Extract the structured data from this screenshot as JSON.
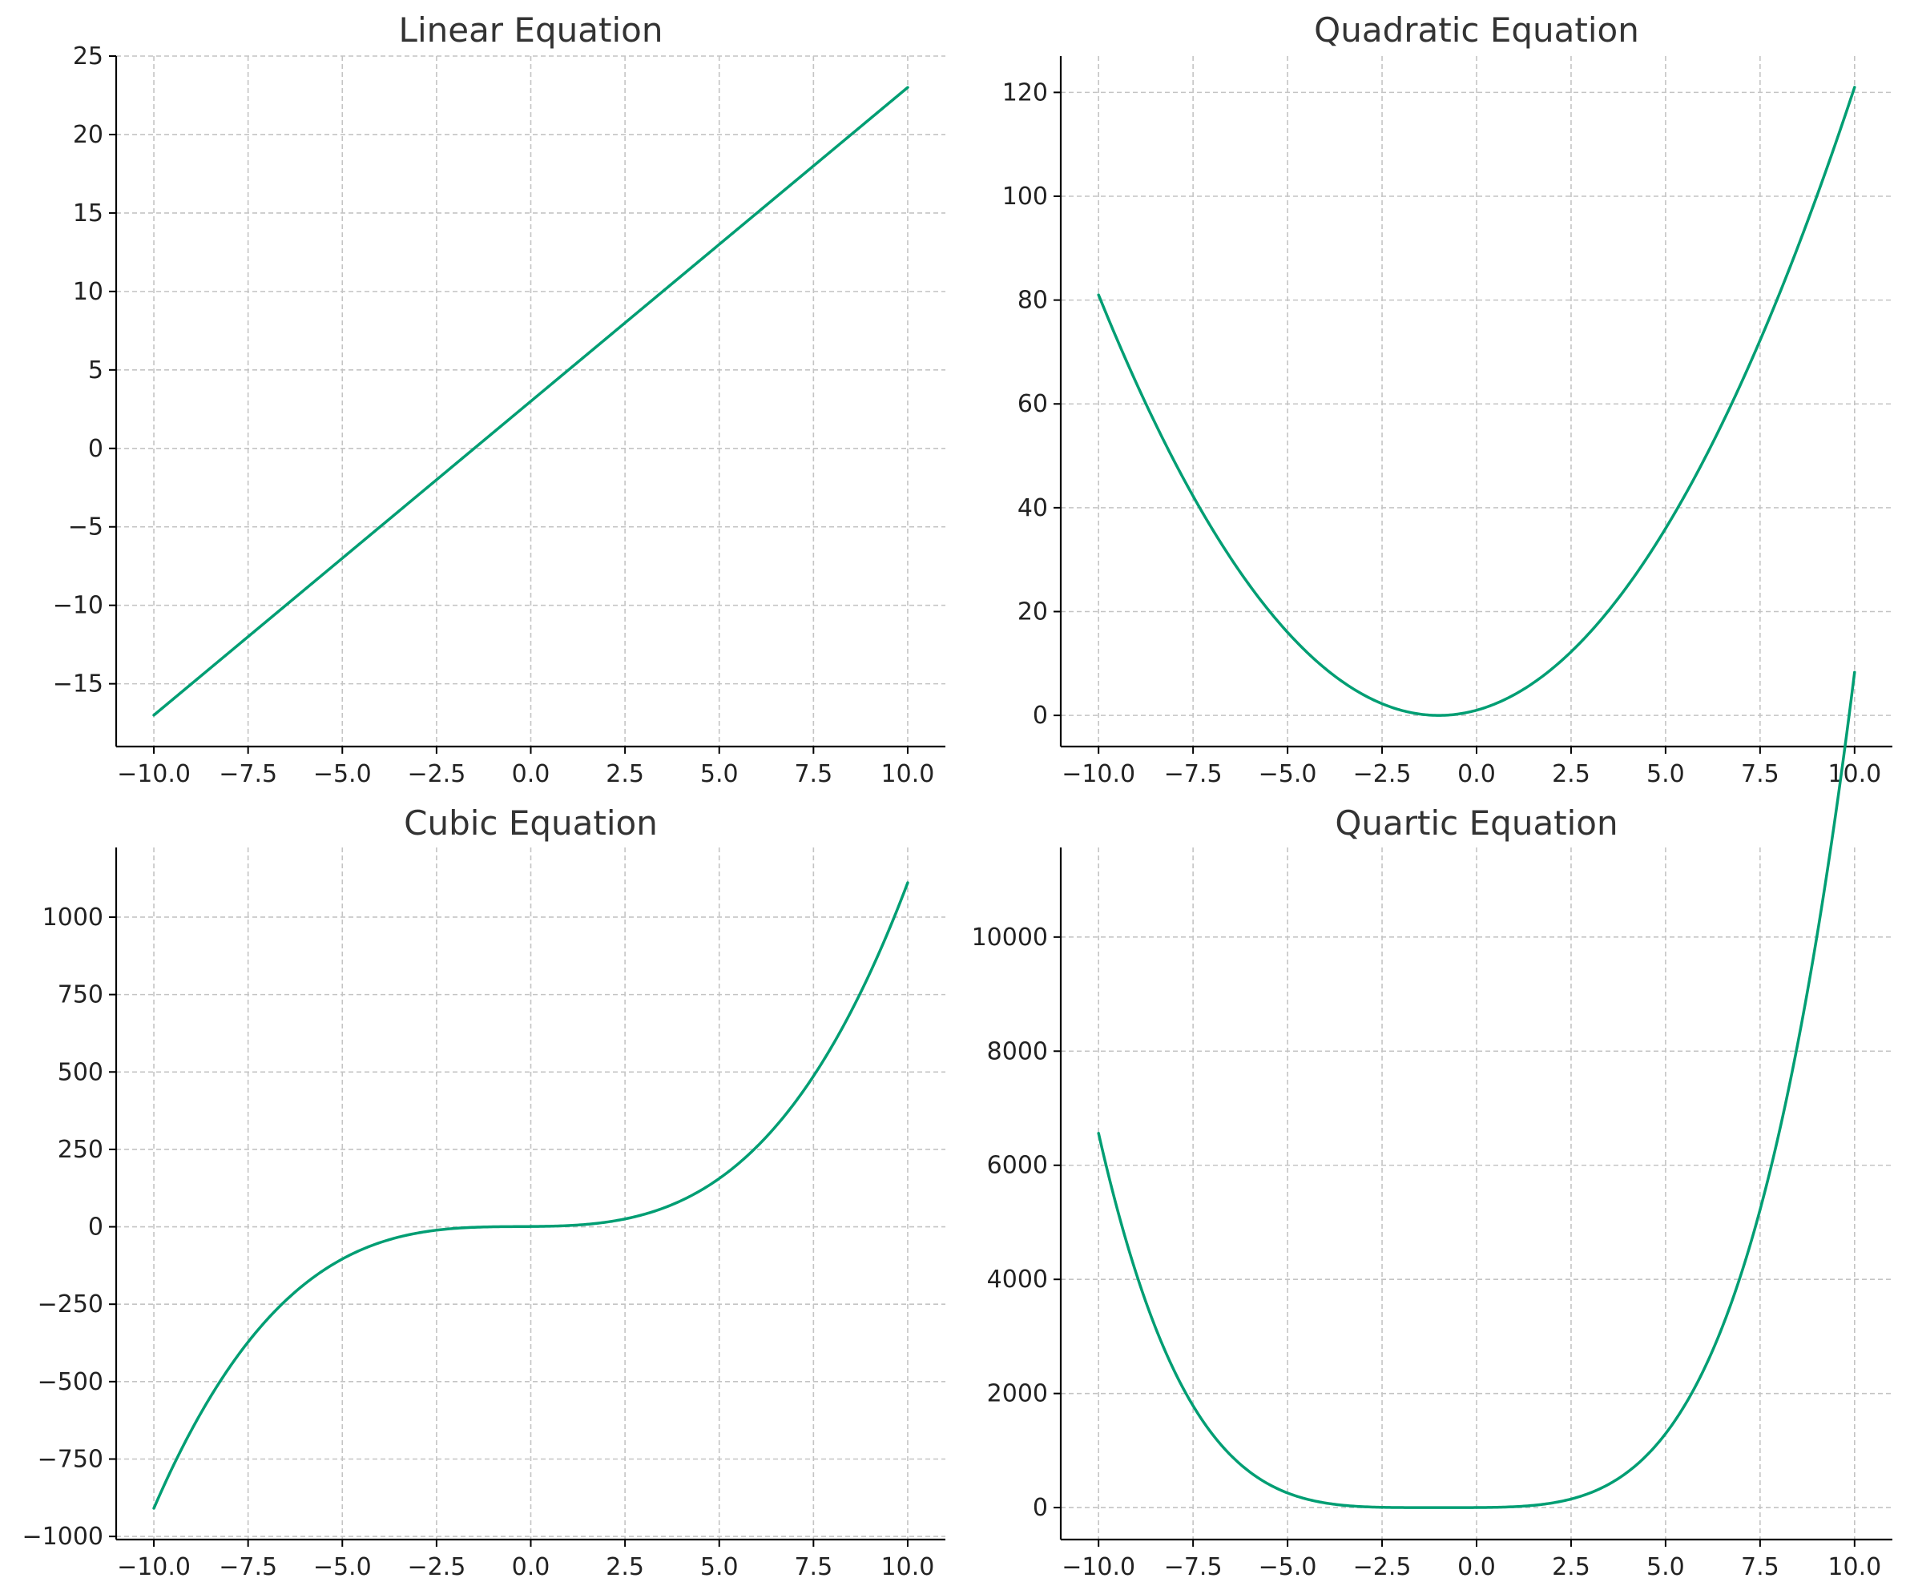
{
  "chart_data": [
    {
      "type": "line",
      "title": "Linear Equation",
      "function": "y = 2x + 3",
      "x_range": [
        -10,
        10
      ],
      "xlim": [
        -11,
        11
      ],
      "ylim": [
        -19,
        25
      ],
      "xticks": [
        -10.0,
        -7.5,
        -5.0,
        -2.5,
        0.0,
        2.5,
        5.0,
        7.5,
        10.0
      ],
      "xtick_labels": [
        "−10.0",
        "−7.5",
        "−5.0",
        "−2.5",
        "0.0",
        "2.5",
        "5.0",
        "7.5",
        "10.0"
      ],
      "yticks": [
        -15,
        -10,
        -5,
        0,
        5,
        10,
        15,
        20,
        25
      ],
      "ytick_labels": [
        "−15",
        "−10",
        "−5",
        "0",
        "5",
        "10",
        "15",
        "20",
        "25"
      ],
      "grid": true,
      "color": "#009e73",
      "series": [
        {
          "x": [
            -10,
            10
          ],
          "y": [
            -17,
            23
          ]
        }
      ]
    },
    {
      "type": "line",
      "title": "Quadratic Equation",
      "function": "y = x^2 + 2x + 1",
      "x_range": [
        -10,
        10
      ],
      "xlim": [
        -11,
        11
      ],
      "ylim": [
        -6,
        127
      ],
      "xticks": [
        -10.0,
        -7.5,
        -5.0,
        -2.5,
        0.0,
        2.5,
        5.0,
        7.5,
        10.0
      ],
      "xtick_labels": [
        "−10.0",
        "−7.5",
        "−5.0",
        "−2.5",
        "0.0",
        "2.5",
        "5.0",
        "7.5",
        "10.0"
      ],
      "yticks": [
        0,
        20,
        40,
        60,
        80,
        100,
        120
      ],
      "ytick_labels": [
        "0",
        "20",
        "40",
        "60",
        "80",
        "100",
        "120"
      ],
      "grid": true,
      "color": "#009e73",
      "series": [
        {
          "x": [
            -10,
            -1,
            10
          ],
          "y": [
            81,
            0,
            121
          ]
        }
      ]
    },
    {
      "type": "line",
      "title": "Cubic Equation",
      "function": "y = x^3 + x^2 + x + 1",
      "x_range": [
        -10,
        10
      ],
      "xlim": [
        -11,
        11
      ],
      "ylim": [
        -1010,
        1225
      ],
      "xticks": [
        -10.0,
        -7.5,
        -5.0,
        -2.5,
        0.0,
        2.5,
        5.0,
        7.5,
        10.0
      ],
      "xtick_labels": [
        "−10.0",
        "−7.5",
        "−5.0",
        "−2.5",
        "0.0",
        "2.5",
        "5.0",
        "7.5",
        "10.0"
      ],
      "yticks": [
        -1000,
        -750,
        -500,
        -250,
        0,
        250,
        500,
        750,
        1000
      ],
      "ytick_labels": [
        "−1000",
        "−750",
        "−500",
        "−250",
        "0",
        "250",
        "500",
        "750",
        "1000"
      ],
      "grid": true,
      "color": "#009e73",
      "series": [
        {
          "x": [
            -10,
            0,
            10
          ],
          "y": [
            -909,
            1,
            1111
          ]
        }
      ]
    },
    {
      "type": "line",
      "title": "Quartic Equation",
      "function": "y = x^4 + 4x^3 + 6x^2 + 4x + 1",
      "x_range": [
        -10,
        10
      ],
      "xlim": [
        -11,
        11
      ],
      "ylim": [
        -560,
        11570
      ],
      "xticks": [
        -10.0,
        -7.5,
        -5.0,
        -2.5,
        0.0,
        2.5,
        5.0,
        7.5,
        10.0
      ],
      "xtick_labels": [
        "−10.0",
        "−7.5",
        "−5.0",
        "−2.5",
        "0.0",
        "2.5",
        "5.0",
        "7.5",
        "10.0"
      ],
      "yticks": [
        0,
        2000,
        4000,
        6000,
        8000,
        10000
      ],
      "ytick_labels": [
        "0",
        "2000",
        "4000",
        "6000",
        "8000",
        "10000"
      ],
      "grid": true,
      "color": "#009e73",
      "series": [
        {
          "x": [
            -10,
            -1,
            10
          ],
          "y": [
            6561,
            0,
            14641
          ]
        }
      ]
    }
  ]
}
